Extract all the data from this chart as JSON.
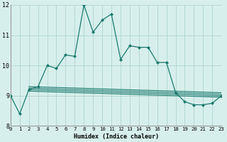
{
  "xlabel": "Humidex (Indice chaleur)",
  "ylabel": "",
  "bg_color": "#d7efec",
  "grid_color": "#aed4ce",
  "line_color": "#1a7a6e",
  "x_min": 0,
  "x_max": 23,
  "y_min": 8,
  "y_max": 12,
  "main_x": [
    0,
    1,
    2,
    3,
    4,
    5,
    6,
    7,
    8,
    9,
    10,
    11,
    12,
    13,
    14,
    15,
    16,
    17,
    18,
    19,
    20,
    21,
    22,
    23
  ],
  "main_y": [
    9.0,
    8.4,
    9.2,
    9.3,
    10.0,
    9.9,
    10.35,
    10.3,
    12.0,
    11.1,
    11.5,
    11.7,
    10.2,
    10.65,
    10.6,
    10.6,
    10.1,
    10.1,
    9.1,
    8.8,
    8.7,
    8.7,
    8.75,
    9.0
  ],
  "flat_lines_start_x": 2,
  "flat_lines_end_x": 23,
  "flat_lines": [
    {
      "y_start": 9.3,
      "y_end": 9.1
    },
    {
      "y_start": 9.25,
      "y_end": 9.05
    },
    {
      "y_start": 9.2,
      "y_end": 9.0
    },
    {
      "y_start": 9.15,
      "y_end": 8.95
    }
  ],
  "x_tick_labels": [
    "0",
    "1",
    "2",
    "3",
    "4",
    "5",
    "6",
    "7",
    "8",
    "9",
    "10",
    "11",
    "12",
    "13",
    "14",
    "15",
    "16",
    "17",
    "18",
    "19",
    "20",
    "21",
    "22",
    "23"
  ],
  "y_tick_labels": [
    "8",
    "9",
    "10",
    "11",
    "12"
  ],
  "y_ticks": [
    8,
    9,
    10,
    11,
    12
  ],
  "label_fontsize": 6.0,
  "tick_fontsize": 5.2
}
